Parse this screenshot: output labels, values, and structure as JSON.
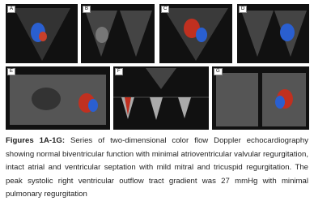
{
  "panels": [
    {
      "label": "A"
    },
    {
      "label": "B"
    },
    {
      "label": "C"
    },
    {
      "label": "D"
    },
    {
      "label": "E"
    },
    {
      "label": "F"
    },
    {
      "label": "G"
    }
  ],
  "caption": {
    "title": "Figures 1A-1G:",
    "text": "Series of two-dimensional color flow Doppler echocardiography showing normal biventricular function with minimal atrioventricular valvular regurgitation, intact atrial and ventricular septation with mild mitral and tricuspid regurgitation. The peak systolic right ventricular outflow tract gradient was 27 mmHg with minimal pulmonary regurgitation"
  }
}
